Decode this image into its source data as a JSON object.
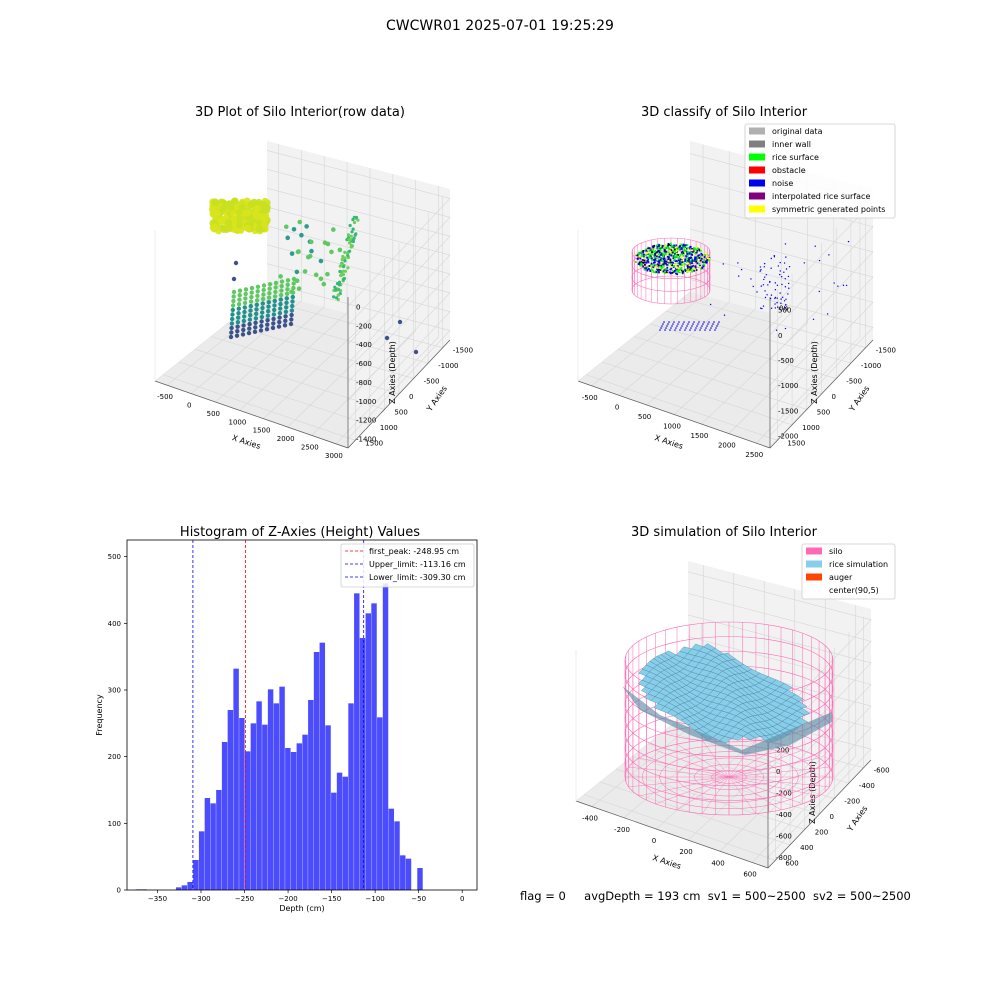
{
  "figure": {
    "suptitle": "CWCWR01 2025-07-01 19:25:29",
    "footer": {
      "flag": "flag = 0",
      "avg_depth": "avgDepth = 193 cm",
      "sv1": "sv1 = 500~2500",
      "sv2": "sv2 = 500~2500"
    }
  },
  "chart_data": [
    {
      "type": "scatter",
      "subtype": "3d",
      "title": "3D Plot of Silo Interior(row data)",
      "xlabel": "X Axies",
      "ylabel": "Y Axies",
      "zlabel": "Z Axies (Depth)",
      "x_ticks": [
        -500,
        0,
        500,
        1000,
        1500,
        2000,
        2500,
        3000
      ],
      "y_ticks": [
        -1500,
        -1000,
        -500,
        0,
        500,
        1000,
        1500
      ],
      "z_ticks": [
        -1400,
        -1200,
        -1000,
        -800,
        -600,
        -400,
        -200,
        0
      ],
      "colormap": "viridis",
      "grid": true
    },
    {
      "type": "scatter",
      "subtype": "3d",
      "title": "3D classify of Silo Interior",
      "xlabel": "X Axies",
      "ylabel": "Y Axies",
      "zlabel": "Z Axies (Depth)",
      "x_ticks": [
        -500,
        0,
        500,
        1000,
        1500,
        2000,
        2500
      ],
      "y_ticks": [
        -1500,
        -1000,
        -500,
        0,
        500,
        1000,
        1500
      ],
      "z_ticks": [
        -2000,
        -1500,
        -1000,
        -500,
        0,
        500
      ],
      "z_tick_partial": "00",
      "legend_position": "upper-right",
      "legend": [
        {
          "label": "original data",
          "color": "#b0b0b0"
        },
        {
          "label": "inner wall",
          "color": "#808080"
        },
        {
          "label": "rice surface",
          "color": "#00ff00"
        },
        {
          "label": "obstacle",
          "color": "#ff0000"
        },
        {
          "label": "noise",
          "color": "#0000ee"
        },
        {
          "label": "interpolated rice surface",
          "color": "#800080"
        },
        {
          "label": "symmetric generated points",
          "color": "#ffff00"
        }
      ],
      "grid": true
    },
    {
      "type": "bar",
      "subtype": "histogram",
      "title": "Histogram of Z-Axies (Height) Values",
      "xlabel": "Depth (cm)",
      "ylabel": "Frequency",
      "xlim": [
        -385,
        17
      ],
      "ylim": [
        0,
        525
      ],
      "x_ticks": [
        -350,
        -300,
        -250,
        -200,
        -150,
        -100,
        -50,
        0
      ],
      "y_ticks": [
        0,
        100,
        200,
        300,
        400,
        500
      ],
      "bar_color": "#0000ff",
      "bin_start": -375,
      "bin_width": 6.6,
      "values": [
        1,
        1,
        0,
        0,
        0,
        0,
        0,
        4,
        7,
        12,
        45,
        88,
        138,
        130,
        150,
        222,
        270,
        332,
        258,
        208,
        250,
        283,
        248,
        301,
        280,
        305,
        213,
        207,
        220,
        233,
        285,
        357,
        371,
        247,
        146,
        176,
        170,
        280,
        445,
        378,
        415,
        430,
        259,
        460,
        122,
        103,
        52,
        47,
        0,
        33
      ],
      "vlines": [
        {
          "label": "first_peak: -248.95 cm",
          "x": -248.95,
          "color": "#ff0000"
        },
        {
          "label": "Upper_limit: -113.16 cm",
          "x": -113.16,
          "color": "#0000ff"
        },
        {
          "label": "Lower_limit: -309.30 cm",
          "x": -309.3,
          "color": "#0000ff"
        }
      ],
      "legend_position": "upper-right",
      "grid": false
    },
    {
      "type": "area",
      "subtype": "3d-surface",
      "title": "3D simulation of Silo Interior",
      "xlabel": "X Axies",
      "ylabel": "Y Axies",
      "zlabel": "Z Axies (Depth)",
      "x_ticks": [
        -400,
        -200,
        0,
        200,
        400,
        600
      ],
      "y_ticks": [
        -600,
        -400,
        -200,
        0,
        200,
        400,
        600
      ],
      "z_ticks": [
        -800,
        -600,
        -400,
        -200,
        0,
        200,
        400
      ],
      "legend_position": "upper-right",
      "legend": [
        {
          "label": "silo",
          "color": "#ff69b4"
        },
        {
          "label": "rice simulation",
          "color": "#87ceeb"
        },
        {
          "label": "auger",
          "color": "#ff4500"
        },
        {
          "label": "center(90,5)",
          "color": "none"
        }
      ],
      "grid": true
    }
  ]
}
